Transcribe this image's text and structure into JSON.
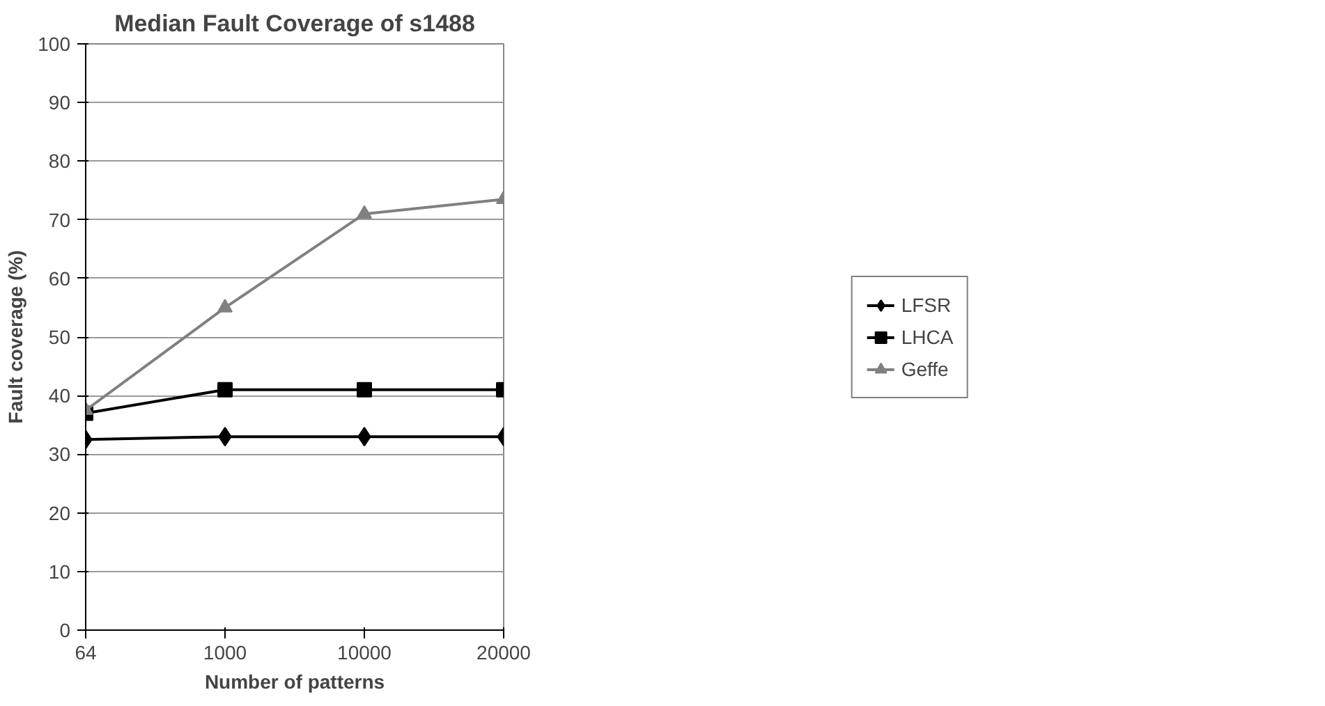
{
  "chart_data": {
    "type": "line",
    "title": "Median Fault Coverage of s1488",
    "xlabel": "Number of patterns",
    "ylabel": "Fault coverage (%)",
    "categories": [
      "64",
      "1000",
      "10000",
      "20000"
    ],
    "series": [
      {
        "name": "LFSR",
        "color": "#000000",
        "marker": "diamond",
        "values": [
          32.5,
          33,
          33,
          33
        ]
      },
      {
        "name": "LHCA",
        "color": "#000000",
        "marker": "square",
        "values": [
          37,
          41,
          41,
          41
        ]
      },
      {
        "name": "Geffe",
        "color": "#808080",
        "marker": "triangle",
        "values": [
          37.5,
          55,
          71,
          73.5
        ]
      }
    ],
    "ylim": [
      0,
      100
    ],
    "yticks": [
      0,
      10,
      20,
      30,
      40,
      50,
      60,
      70,
      80,
      90,
      100
    ],
    "grid": "y",
    "legend": "right",
    "line_style": "solid"
  }
}
